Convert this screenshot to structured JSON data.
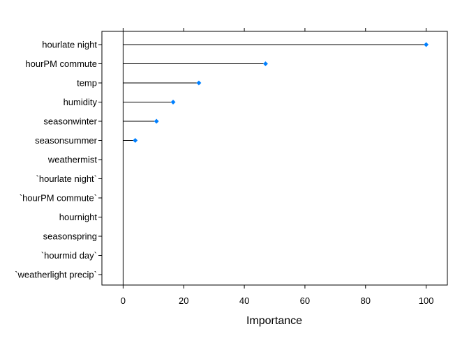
{
  "chart_data": {
    "type": "dotplot",
    "orientation": "horizontal",
    "title": "",
    "xlabel": "Importance",
    "ylabel": "",
    "xlim": [
      -7,
      107
    ],
    "x_ticks": [
      0,
      20,
      40,
      60,
      80,
      100
    ],
    "x_tick_labels": [
      "0",
      "20",
      "40",
      "60",
      "80",
      "100"
    ],
    "categories": [
      "hourlate night",
      "hourPM commute",
      "temp",
      "humidity",
      "seasonwinter",
      "seasonsummer",
      "weathermist",
      "`hourlate night`",
      "`hourPM commute`",
      "hournight",
      "seasonspring",
      "`hourmid day`",
      "`weatherlight precip`"
    ],
    "values": [
      100,
      47,
      25,
      16.5,
      11,
      4,
      0,
      0,
      0,
      0,
      0,
      0,
      0
    ],
    "reference_line": 0,
    "grid": false,
    "marker_color": "#0080ff",
    "line_color": "#000000"
  }
}
